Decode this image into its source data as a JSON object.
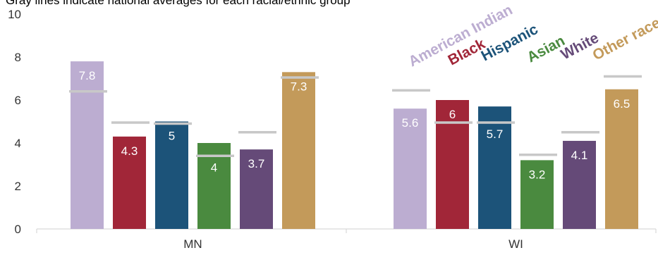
{
  "chart_data": {
    "type": "bar",
    "subtitle": "Gray lines indicate national averages for each racial/ethnic group",
    "categories": [
      "MN",
      "WI"
    ],
    "series": [
      {
        "name": "American Indian",
        "color": "#bcadd1",
        "values": [
          7.8,
          5.6
        ],
        "national_avg": [
          6.4,
          6.45
        ]
      },
      {
        "name": "Black",
        "color": "#a12638",
        "values": [
          4.3,
          6.0
        ],
        "national_avg": [
          4.95,
          4.95
        ]
      },
      {
        "name": "Hispanic",
        "color": "#1c5379",
        "values": [
          5.0,
          5.7
        ],
        "national_avg": [
          4.9,
          4.95
        ]
      },
      {
        "name": "Asian",
        "color": "#4a8a3f",
        "values": [
          4.0,
          3.2
        ],
        "national_avg": [
          3.4,
          3.45
        ]
      },
      {
        "name": "White",
        "color": "#654a78",
        "values": [
          3.7,
          4.1
        ],
        "national_avg": [
          4.5,
          4.5
        ]
      },
      {
        "name": "Other race",
        "color": "#c39a5a",
        "values": [
          7.3,
          6.5
        ],
        "national_avg": [
          7.05,
          7.1
        ]
      }
    ],
    "data_labels": [
      [
        "7.8",
        "5.6"
      ],
      [
        "4.3",
        "6"
      ],
      [
        "5",
        "5.7"
      ],
      [
        "4",
        "3.2"
      ],
      [
        "3.7",
        "4.1"
      ],
      [
        "7.3",
        "6.5"
      ]
    ],
    "yticks": [
      "0",
      "2",
      "4",
      "6",
      "8",
      "10"
    ],
    "ylim": [
      0,
      10
    ],
    "avg_line_color": "#c8c8c8",
    "legend_position": "top-right",
    "grid": false
  }
}
